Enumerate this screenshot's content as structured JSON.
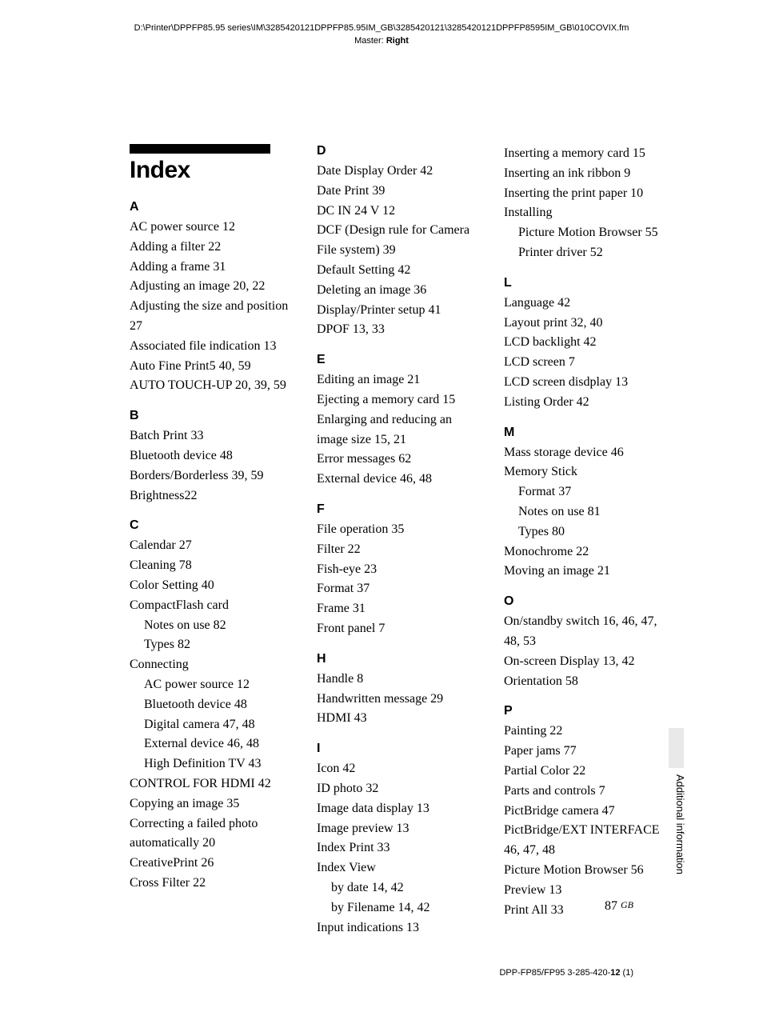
{
  "header": {
    "path": "D:\\Printer\\DPPFP85.95 series\\IM\\3285420121DPPFP85.95IM_GB\\3285420121\\3285420121DPPFP8595IM_GB\\010COVIX.fm",
    "master_label": "Master:",
    "master_value": "Right"
  },
  "title": "Index",
  "side_label": "Additional information",
  "page_number": "87",
  "page_lang": "GB",
  "footer": {
    "model": "DPP-FP85/FP95 3-285-420-",
    "rev": "12",
    "suffix": " (1)"
  },
  "sections": {
    "A": [
      {
        "t": "AC power source 12"
      },
      {
        "t": "Adding a filter 22"
      },
      {
        "t": "Adding a frame 31"
      },
      {
        "t": "Adjusting an image 20, 22"
      },
      {
        "t": "Adjusting the size and position 27"
      },
      {
        "t": "Associated file indication 13"
      },
      {
        "t": "Auto Fine Print5 40, 59"
      },
      {
        "t": "AUTO TOUCH-UP 20, 39, 59"
      }
    ],
    "B": [
      {
        "t": "Batch Print 33"
      },
      {
        "t": "Bluetooth device 48"
      },
      {
        "t": "Borders/Borderless 39, 59"
      },
      {
        "t": "Brightness22"
      }
    ],
    "C": [
      {
        "t": "Calendar 27"
      },
      {
        "t": "Cleaning 78"
      },
      {
        "t": "Color Setting 40"
      },
      {
        "t": "CompactFlash card"
      },
      {
        "t": "Notes on use 82",
        "sub": true
      },
      {
        "t": "Types 82",
        "sub": true
      },
      {
        "t": "Connecting"
      },
      {
        "t": "AC power source 12",
        "sub": true
      },
      {
        "t": "Bluetooth device 48",
        "sub": true
      },
      {
        "t": "Digital camera 47, 48",
        "sub": true
      },
      {
        "t": "External device 46, 48",
        "sub": true
      },
      {
        "t": "High Definition TV 43",
        "sub": true
      },
      {
        "t": "CONTROL FOR HDMI 42"
      },
      {
        "t": "Copying an image 35"
      },
      {
        "t": "Correcting a failed photo automatically 20"
      },
      {
        "t": "CreativePrint 26"
      },
      {
        "t": "Cross Filter 22"
      }
    ],
    "D": [
      {
        "t": "Date Display Order 42"
      },
      {
        "t": "Date Print 39"
      },
      {
        "t": "DC IN 24 V 12"
      },
      {
        "t": "DCF (Design rule for Camera File system) 39"
      },
      {
        "t": "Default Setting 42"
      },
      {
        "t": "Deleting an image 36"
      },
      {
        "t": "Display/Printer setup 41"
      },
      {
        "t": "DPOF 13, 33"
      }
    ],
    "E": [
      {
        "t": "Editing an image 21"
      },
      {
        "t": "Ejecting a memory card 15"
      },
      {
        "t": "Enlarging and reducing an image size 15, 21"
      },
      {
        "t": "Error messages 62"
      },
      {
        "t": "External device 46, 48"
      }
    ],
    "F": [
      {
        "t": "File operation 35"
      },
      {
        "t": "Filter 22"
      },
      {
        "t": "Fish-eye 23"
      },
      {
        "t": "Format 37"
      },
      {
        "t": "Frame 31"
      },
      {
        "t": "Front panel 7"
      }
    ],
    "H": [
      {
        "t": "Handle 8"
      },
      {
        "t": "Handwritten message 29"
      },
      {
        "t": "HDMI 43"
      }
    ],
    "I": [
      {
        "t": "Icon 42"
      },
      {
        "t": "ID photo 32"
      },
      {
        "t": "Image data display 13"
      },
      {
        "t": "Image preview 13"
      },
      {
        "t": "Index Print 33"
      },
      {
        "t": "Index View"
      },
      {
        "t": "by date 14, 42",
        "sub": true
      },
      {
        "t": "by Filename 14, 42",
        "sub": true
      },
      {
        "t": "Input indications 13"
      }
    ],
    "col3_pre": [
      {
        "t": "Inserting a memory card 15"
      },
      {
        "t": "Inserting an ink ribbon 9"
      },
      {
        "t": "Inserting the print paper 10"
      },
      {
        "t": "Installing"
      },
      {
        "t": "Picture Motion Browser 55",
        "sub": true
      },
      {
        "t": "Printer driver 52",
        "sub": true
      }
    ],
    "L": [
      {
        "t": "Language 42"
      },
      {
        "t": "Layout print 32, 40"
      },
      {
        "t": "LCD backlight 42"
      },
      {
        "t": "LCD screen 7"
      },
      {
        "t": "LCD screen disdplay 13"
      },
      {
        "t": "Listing Order 42"
      }
    ],
    "M": [
      {
        "t": "Mass storage device 46"
      },
      {
        "t": "Memory Stick"
      },
      {
        "t": "Format 37",
        "sub": true
      },
      {
        "t": "Notes on use 81",
        "sub": true
      },
      {
        "t": "Types 80",
        "sub": true
      },
      {
        "t": "Monochrome 22"
      },
      {
        "t": "Moving an image 21"
      }
    ],
    "O": [
      {
        "t": "On/standby switch 16, 46, 47, 48, 53"
      },
      {
        "t": "On-screen Display 13, 42"
      },
      {
        "t": "Orientation 58"
      }
    ],
    "P": [
      {
        "t": "Painting 22"
      },
      {
        "t": "Paper jams 77"
      },
      {
        "t": "Partial Color 22"
      },
      {
        "t": "Parts and controls 7"
      },
      {
        "t": "PictBridge camera 47"
      },
      {
        "t": "PictBridge/EXT INTERFACE 46, 47, 48"
      },
      {
        "t": "Picture Motion Browser 56"
      },
      {
        "t": "Preview 13"
      },
      {
        "t": "Print All 33"
      }
    ]
  },
  "letters": {
    "A": "A",
    "B": "B",
    "C": "C",
    "D": "D",
    "E": "E",
    "F": "F",
    "H": "H",
    "I": "I",
    "L": "L",
    "M": "M",
    "O": "O",
    "P": "P"
  }
}
